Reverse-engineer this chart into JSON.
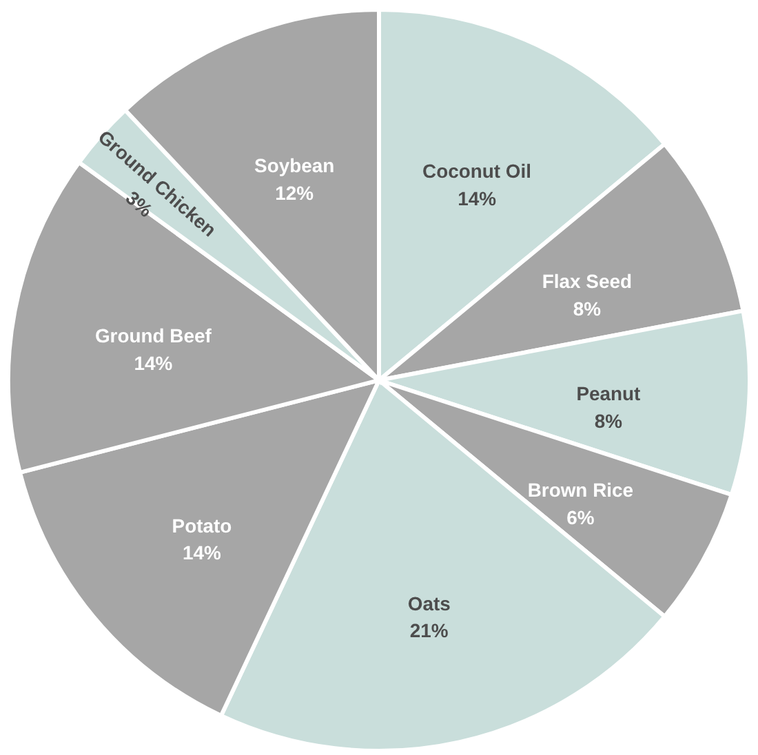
{
  "chart_data": {
    "type": "pie",
    "categories": [
      "Coconut Oil",
      "Flax Seed",
      "Peanut",
      "Brown Rice",
      "Oats",
      "Potato",
      "Ground Beef",
      "Ground Chicken",
      "Soybean"
    ],
    "values": [
      14,
      8,
      8,
      6,
      21,
      14,
      14,
      3,
      12
    ],
    "value_labels": [
      "14%",
      "8%",
      "8%",
      "6%",
      "21%",
      "14%",
      "14%",
      "3%",
      "12%"
    ],
    "colors": [
      "#c9dedb",
      "#a6a6a6",
      "#c9dedb",
      "#a6a6a6",
      "#c9dedb",
      "#a6a6a6",
      "#a6a6a6",
      "#c9dedb",
      "#a6a6a6"
    ]
  }
}
